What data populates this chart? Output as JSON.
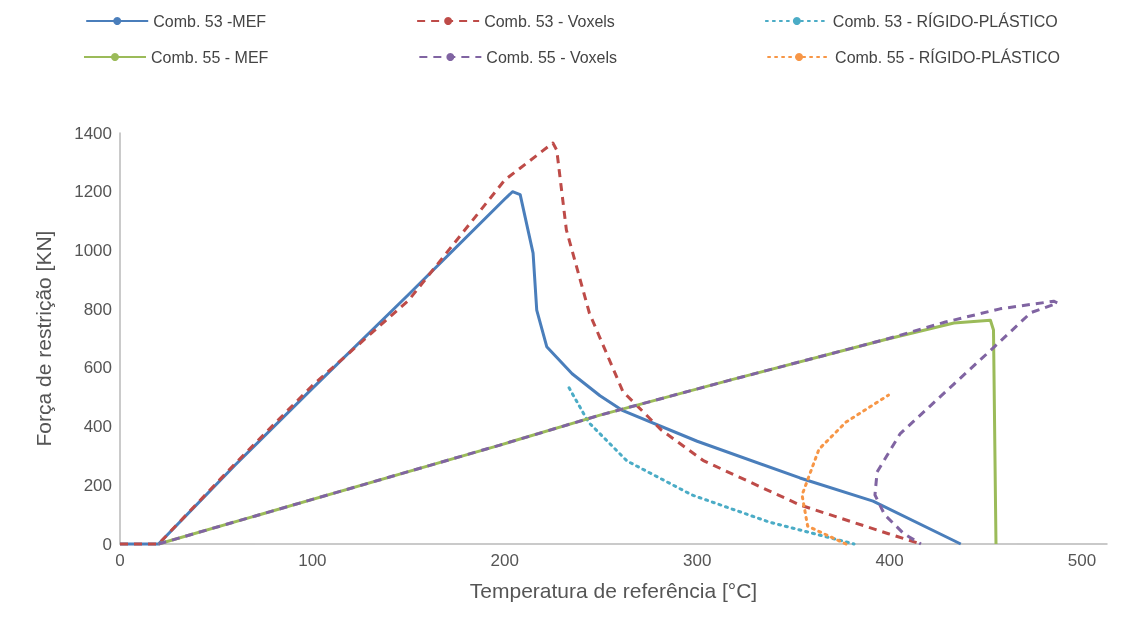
{
  "chart_data": {
    "type": "line",
    "xlabel": "Temperatura de referência [°C]",
    "ylabel": "Força de restrição [KN]",
    "xlim": [
      0,
      513
    ],
    "xticks": [
      0,
      100,
      200,
      300,
      400,
      500
    ],
    "ylim": [
      0,
      1400
    ],
    "yticks": [
      0,
      200,
      400,
      600,
      800,
      1000,
      1200,
      1400
    ],
    "grid": false,
    "legend": "top",
    "marker": "none",
    "series": [
      {
        "name": "Comb. 53 -MEF",
        "color": "#4a7ebb",
        "line_style": "solid",
        "x": [
          0,
          20,
          60,
          100,
          150,
          200,
          204,
          208,
          214.7,
          216.6,
          221.8,
          235,
          249.5,
          261.4,
          300,
          353.4,
          391.4,
          437
        ],
        "values": [
          0,
          0,
          270,
          530,
          850,
          1175,
          1200,
          1190,
          991,
          797,
          672,
          580,
          505,
          454,
          350,
          225,
          146,
          0
        ]
      },
      {
        "name": "Comb. 53 - Voxels",
        "color": "#be4b48",
        "line_style": "dashed",
        "x": [
          0,
          20,
          60,
          100,
          150,
          200,
          225,
          227,
          232,
          244,
          261.4,
          281.4,
          303.5,
          353.4,
          399.4,
          416.3
        ],
        "values": [
          0,
          0,
          275,
          540,
          830,
          1240,
          1366,
          1342,
          1070,
          786,
          519,
          388,
          283,
          133,
          35,
          0
        ]
      },
      {
        "name": "Comb. 53 - RÍGIDO-PLÁSTICO",
        "color": "#4bacc6",
        "line_style": "dotted",
        "x": [
          233.4,
          243.5,
          263.5,
          297.3,
          337.3,
          381.5
        ],
        "values": [
          532,
          415,
          283,
          167,
          75,
          0
        ]
      },
      {
        "name": "Comb. 55 - MEF",
        "color": "#9bbb59",
        "line_style": "solid",
        "x": [
          20,
          197.5,
          249.5,
          317.5,
          397.4,
          433.4,
          452.4,
          454,
          455.3
        ],
        "values": [
          0,
          337,
          439,
          559,
          696,
          753,
          762,
          729,
          0
        ]
      },
      {
        "name": "Comb. 55 - Voxels",
        "color": "#8064a2",
        "line_style": "dashed",
        "x": [
          20,
          197.5,
          249.5,
          317.5,
          397.4,
          429,
          457.4,
          485.3,
          487.4,
          473.4,
          453.2,
          427.2,
          405.4,
          393.5,
          392.4,
          397.4,
          407.4,
          416.3
        ],
        "values": [
          0,
          337,
          439,
          559,
          696,
          756,
          801,
          827,
          821,
          788,
          664,
          507,
          375,
          245,
          167,
          100,
          35,
          0
        ]
      },
      {
        "name": "Comb. 55 - RÍGIDO-PLÁSTICO",
        "color": "#f79646",
        "line_style": "dotted",
        "x": [
          377.3,
          357.4,
          354.5,
          363.3,
          377.3,
          399.4
        ],
        "values": [
          0,
          61,
          167,
          323,
          415,
          507
        ]
      }
    ]
  }
}
